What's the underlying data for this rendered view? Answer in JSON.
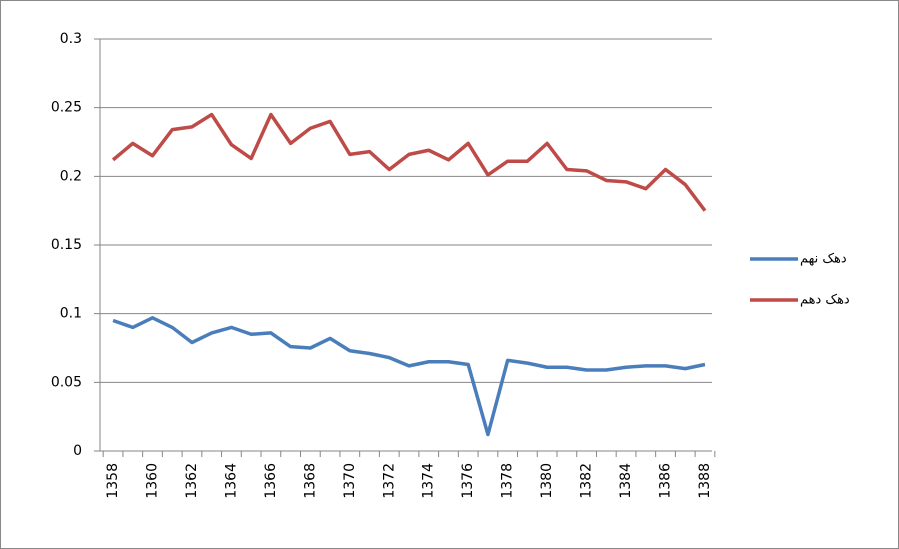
{
  "chart_data": {
    "type": "line",
    "categories": [
      "1358",
      null,
      "1360",
      null,
      "1362",
      null,
      "1364",
      null,
      "1366",
      null,
      "1368",
      null,
      "1370",
      null,
      "1372",
      null,
      "1374",
      null,
      "1376",
      null,
      "1378",
      null,
      "1380",
      null,
      "1382",
      null,
      "1384",
      null,
      "1386",
      null,
      "1388"
    ],
    "series": [
      {
        "name": "دهک نهم",
        "color": "#4a7ebb",
        "values": [
          0.095,
          0.09,
          0.097,
          0.09,
          0.079,
          0.086,
          0.09,
          0.085,
          0.086,
          0.076,
          0.075,
          0.082,
          0.073,
          0.071,
          0.068,
          0.062,
          0.065,
          0.065,
          0.063,
          0.012,
          0.066,
          0.064,
          0.061,
          0.061,
          0.059,
          0.059,
          0.061,
          0.062,
          0.062,
          0.06,
          0.063
        ]
      },
      {
        "name": "دهک دهم",
        "color": "#be4b48",
        "values": [
          0.212,
          0.224,
          0.215,
          0.234,
          0.236,
          0.245,
          0.223,
          0.213,
          0.245,
          0.224,
          0.235,
          0.24,
          0.216,
          0.218,
          0.205,
          0.216,
          0.219,
          0.212,
          0.224,
          0.201,
          0.211,
          0.211,
          0.224,
          0.205,
          0.204,
          0.197,
          0.196,
          0.191,
          0.205,
          0.194,
          0.175
        ]
      }
    ],
    "ylim": [
      0,
      0.3
    ],
    "yticks": [
      0,
      0.05,
      0.1,
      0.15,
      0.2,
      0.25,
      0.3
    ],
    "grid": true,
    "legend": "right"
  }
}
